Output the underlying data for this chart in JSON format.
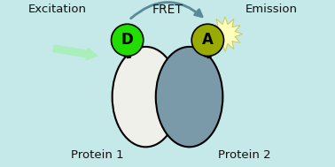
{
  "bg_color": "#c5e8e8",
  "protein1_color": "#f0f0ea",
  "protein2_color": "#7a9aaa",
  "donor_color": "#22dd00",
  "acceptor_color": "#99aa00",
  "burst_color": "#ffffbb",
  "excitation_arrow_color": "#aaeebb",
  "fret_arrow_color": "#5a8a98",
  "text_color": "#111111",
  "excitation_label": "Excitation",
  "fret_label": "FRET",
  "emission_label": "Emission",
  "protein1_label": "Protein 1",
  "protein2_label": "Protein 2",
  "donor_label": "D",
  "acceptor_label": "A"
}
